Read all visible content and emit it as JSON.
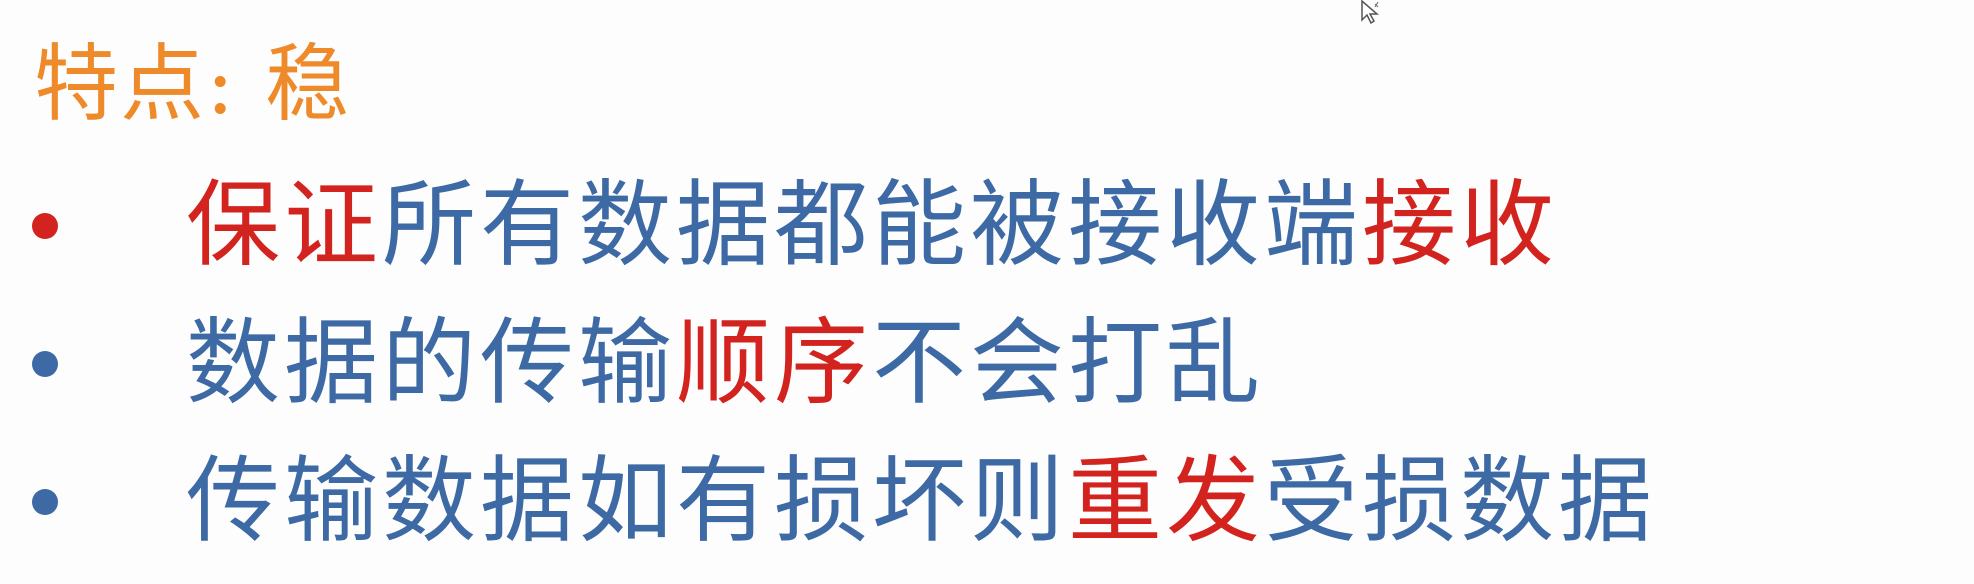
{
  "title": "特点: 稳",
  "colors": {
    "title": "#ee8a2a",
    "text": "#3d6aa4",
    "emphasis": "#d2231f",
    "bullet_first": "#d2231f",
    "bullet_other": "#3d6aa4"
  },
  "bullets": [
    {
      "segments": [
        {
          "text": "保证",
          "emphasis": true
        },
        {
          "text": "所有数据都能被接收端",
          "emphasis": false
        },
        {
          "text": "接收",
          "emphasis": true
        }
      ]
    },
    {
      "segments": [
        {
          "text": "数据的传输",
          "emphasis": false
        },
        {
          "text": "顺序",
          "emphasis": true
        },
        {
          "text": "不会打乱",
          "emphasis": false
        }
      ]
    },
    {
      "segments": [
        {
          "text": "传输数据如有损坏则",
          "emphasis": false
        },
        {
          "text": "重发",
          "emphasis": true
        },
        {
          "text": "受损数据",
          "emphasis": false
        }
      ]
    }
  ],
  "icons": {
    "cursor": "mouse-pointer-icon"
  }
}
